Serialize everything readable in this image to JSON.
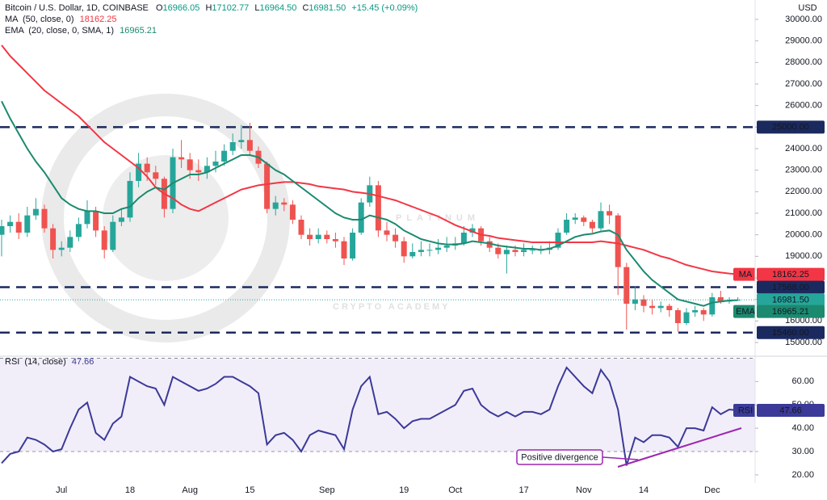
{
  "chart_data": {
    "type": "candlestick",
    "symbol": "Bitcoin / U.S. Dollar, 1D, COINBASE",
    "ohlc_prefixes": [
      "O",
      "H",
      "L",
      "C"
    ],
    "ohlc_value_labels": [
      "16966.05",
      "17102.77",
      "16964.50",
      "16981.50"
    ],
    "change_label": "+15.45 (+0.09%)",
    "currency": "USD",
    "watermark": [
      "PLATINUM",
      "CRYPTO ACADEMY"
    ],
    "up_color": "#26a69a",
    "down_color": "#ef5350",
    "categories": [
      null,
      null,
      null,
      null,
      null,
      null,
      null,
      "Jul",
      null,
      null,
      null,
      null,
      null,
      null,
      null,
      "18",
      null,
      null,
      null,
      null,
      null,
      null,
      "Aug",
      null,
      null,
      null,
      null,
      null,
      null,
      "15",
      null,
      null,
      null,
      null,
      null,
      null,
      null,
      null,
      "Sep",
      null,
      null,
      null,
      null,
      null,
      null,
      null,
      null,
      "19",
      null,
      null,
      null,
      null,
      null,
      "Oct",
      null,
      null,
      null,
      null,
      null,
      null,
      null,
      "17",
      null,
      null,
      null,
      null,
      null,
      null,
      "Nov",
      null,
      null,
      null,
      null,
      null,
      null,
      "14",
      null,
      null,
      null,
      null,
      null,
      null,
      null,
      "Dec",
      null,
      null,
      null
    ],
    "open": [
      20000,
      20400,
      20600,
      20100,
      20900,
      21200,
      20300,
      19300,
      19400,
      19900,
      20500,
      21100,
      20200,
      19300,
      20600,
      20800,
      22500,
      23300,
      22900,
      22600,
      21200,
      23600,
      23500,
      23000,
      22900,
      23200,
      23400,
      23900,
      24300,
      24400,
      23900,
      23300,
      21200,
      21500,
      21400,
      20700,
      20000,
      19800,
      20000,
      19800,
      19700,
      18900,
      20100,
      21500,
      22300,
      20200,
      20000,
      19700,
      19000,
      19200,
      19300,
      19300,
      19400,
      19500,
      19600,
      20100,
      20300,
      19700,
      19400,
      19100,
      19300,
      19200,
      19300,
      19300,
      19300,
      19400,
      20100,
      20700,
      20800,
      20600,
      20300,
      21100,
      20900,
      18500,
      16800,
      17000,
      16700,
      16600,
      16700,
      16500,
      15900,
      16400,
      16500,
      16300,
      17100,
      16900,
      16966.05
    ],
    "high": [
      20700,
      20900,
      21000,
      21300,
      21700,
      21400,
      20500,
      19700,
      20200,
      20800,
      21600,
      21300,
      20400,
      20900,
      21200,
      22900,
      23800,
      23600,
      23200,
      22700,
      24000,
      24400,
      23800,
      23500,
      23600,
      23900,
      24200,
      24700,
      25100,
      25200,
      24100,
      23400,
      21800,
      21700,
      21600,
      20900,
      20300,
      20300,
      20200,
      20100,
      19900,
      20300,
      21700,
      22700,
      22500,
      20600,
      20300,
      19900,
      19600,
      19700,
      19600,
      19800,
      19900,
      19900,
      20400,
      20500,
      20400,
      19900,
      19600,
      19500,
      19500,
      19600,
      19500,
      19500,
      19700,
      20300,
      21000,
      21000,
      20900,
      20700,
      21500,
      21400,
      21000,
      18700,
      17600,
      17200,
      17000,
      16900,
      16800,
      16600,
      16600,
      16700,
      16600,
      17300,
      17400,
      17100,
      17102.77
    ],
    "low": [
      19000,
      20100,
      19800,
      19900,
      20700,
      20100,
      18900,
      19000,
      19200,
      19700,
      20300,
      19900,
      18900,
      19200,
      20400,
      20600,
      22200,
      22500,
      22300,
      20800,
      21000,
      23100,
      22600,
      22500,
      22600,
      22900,
      23200,
      23700,
      24000,
      23700,
      23100,
      21000,
      20900,
      21100,
      20500,
      19800,
      19500,
      19600,
      19600,
      19400,
      18600,
      18800,
      20000,
      21300,
      19900,
      19700,
      19400,
      18700,
      18900,
      19000,
      19000,
      19100,
      19200,
      19300,
      19500,
      19900,
      19500,
      19200,
      18900,
      18200,
      19000,
      19000,
      19100,
      19100,
      19100,
      19300,
      20000,
      20500,
      20400,
      20100,
      20200,
      20500,
      17200,
      15600,
      16500,
      16400,
      16300,
      16400,
      16200,
      15500,
      15800,
      16200,
      16000,
      16200,
      16800,
      16800,
      16964.5
    ],
    "close": [
      20400,
      20600,
      20100,
      20900,
      21200,
      20300,
      19300,
      19400,
      19900,
      20500,
      21100,
      20200,
      19300,
      20600,
      20800,
      22500,
      23300,
      22900,
      22600,
      21200,
      23600,
      23500,
      23000,
      22900,
      23200,
      23400,
      23900,
      24300,
      24400,
      23900,
      23300,
      21200,
      21500,
      21400,
      20700,
      20000,
      19800,
      20000,
      19800,
      19700,
      18900,
      20100,
      21500,
      22300,
      20200,
      20000,
      19700,
      19000,
      19200,
      19300,
      19300,
      19400,
      19500,
      19600,
      20100,
      20300,
      19700,
      19400,
      19100,
      19300,
      19200,
      19300,
      19300,
      19300,
      19400,
      20100,
      20700,
      20800,
      20600,
      20300,
      21100,
      20900,
      18500,
      16800,
      17000,
      16700,
      16600,
      16700,
      16500,
      15900,
      16400,
      16500,
      16300,
      17100,
      16900,
      16966.05,
      16981.5
    ],
    "ma": {
      "name": "MA",
      "params": "(50, close, 0)",
      "color": "#f23645",
      "values": [
        28800,
        28300,
        27900,
        27500,
        27100,
        26700,
        26400,
        26100,
        25800,
        25500,
        25100,
        24700,
        24300,
        24000,
        23700,
        23400,
        23100,
        22700,
        22200,
        21900,
        21700,
        21400,
        21200,
        21100,
        21300,
        21500,
        21700,
        21900,
        22100,
        22200,
        22300,
        22350,
        22400,
        22450,
        22450,
        22400,
        22350,
        22250,
        22200,
        22150,
        22100,
        22000,
        21950,
        21900,
        21800,
        21700,
        21600,
        21450,
        21300,
        21150,
        21000,
        20850,
        20650,
        20450,
        20300,
        20150,
        20000,
        19950,
        19850,
        19800,
        19750,
        19700,
        19650,
        19650,
        19650,
        19650,
        19650,
        19650,
        19650,
        19650,
        19700,
        19650,
        19600,
        19500,
        19400,
        19300,
        19150,
        19000,
        18900,
        18750,
        18600,
        18500,
        18400,
        18300,
        18250,
        18200,
        18162.25
      ]
    },
    "ema": {
      "name": "EMA",
      "params": "(20, close, 0, SMA, 1)",
      "color": "#1b8a6f",
      "values": [
        26200,
        25400,
        24700,
        24000,
        23400,
        22900,
        22300,
        21700,
        21400,
        21200,
        21100,
        21100,
        21000,
        21000,
        21200,
        21300,
        21700,
        22000,
        22200,
        22100,
        22400,
        22600,
        22800,
        22800,
        22900,
        23100,
        23300,
        23500,
        23700,
        23700,
        23600,
        23300,
        23000,
        22800,
        22500,
        22200,
        21900,
        21600,
        21300,
        21000,
        20800,
        20700,
        20700,
        20900,
        20800,
        20700,
        20500,
        20200,
        20000,
        19800,
        19700,
        19600,
        19550,
        19550,
        19600,
        19700,
        19650,
        19600,
        19500,
        19450,
        19400,
        19350,
        19350,
        19300,
        19350,
        19500,
        19700,
        19900,
        20000,
        20050,
        20150,
        20200,
        20000,
        19300,
        18800,
        18300,
        17900,
        17600,
        17300,
        17000,
        16900,
        16800,
        16700,
        16850,
        16900,
        16950,
        16965.21
      ]
    },
    "ylim": [
      14400,
      30900
    ],
    "yticks": [
      {
        "value": 15000,
        "label": "15000.00"
      },
      {
        "value": 16000,
        "label": "16000.00"
      },
      {
        "value": 17000,
        "label": "17000.00"
      },
      {
        "value": 18000,
        "label": "18000.00"
      },
      {
        "value": 19000,
        "label": "19000.00"
      },
      {
        "value": 20000,
        "label": "20000.00"
      },
      {
        "value": 21000,
        "label": "21000.00"
      },
      {
        "value": 22000,
        "label": "22000.00"
      },
      {
        "value": 23000,
        "label": "23000.00"
      },
      {
        "value": 24000,
        "label": "24000.00"
      },
      {
        "value": 25000,
        "label": "25000.00"
      },
      {
        "value": 26000,
        "label": "26000.00"
      },
      {
        "value": 27000,
        "label": "27000.00"
      },
      {
        "value": 28000,
        "label": "28000.00"
      },
      {
        "value": 29000,
        "label": "29000.00"
      },
      {
        "value": 30000,
        "label": "30000.00"
      }
    ],
    "levels": [
      {
        "value": 25000,
        "label": "25000.00"
      },
      {
        "value": 17568,
        "label": "17568.00"
      },
      {
        "value": 15460,
        "label": "15460.00"
      }
    ],
    "level_color": "#1b2a5e",
    "rsi": {
      "name": "RSI",
      "params": "(14, close)",
      "color": "#3b3a98",
      "values": [
        25,
        29,
        30,
        36,
        35,
        33,
        30,
        31,
        40,
        48,
        51,
        38,
        35,
        42,
        45,
        62,
        60,
        58,
        57,
        50,
        62,
        60,
        58,
        56,
        57,
        59,
        62,
        62,
        60,
        58,
        55,
        33,
        37,
        38,
        35,
        30,
        37,
        39,
        38,
        37,
        31,
        48,
        58,
        62,
        46,
        47,
        44,
        40,
        43,
        44,
        44,
        46,
        48,
        50,
        56,
        57,
        50,
        47,
        45,
        47,
        45,
        47,
        47,
        46,
        48,
        58,
        66,
        62,
        58,
        55,
        65,
        60,
        48,
        24,
        36,
        34,
        37,
        37,
        36,
        32,
        40,
        40,
        39,
        49,
        46,
        48,
        47.66
      ],
      "ylim": [
        16.5,
        70.5
      ],
      "yticks": [
        {
          "value": 20,
          "label": "20.00"
        },
        {
          "value": 30,
          "label": "30.00"
        },
        {
          "value": 40,
          "label": "40.00"
        },
        {
          "value": 50,
          "label": "50.00"
        },
        {
          "value": 60,
          "label": "60.00"
        }
      ],
      "band": [
        30,
        70
      ]
    },
    "annotation": "Positive divergence",
    "annotation_color": "#9c27b0"
  }
}
